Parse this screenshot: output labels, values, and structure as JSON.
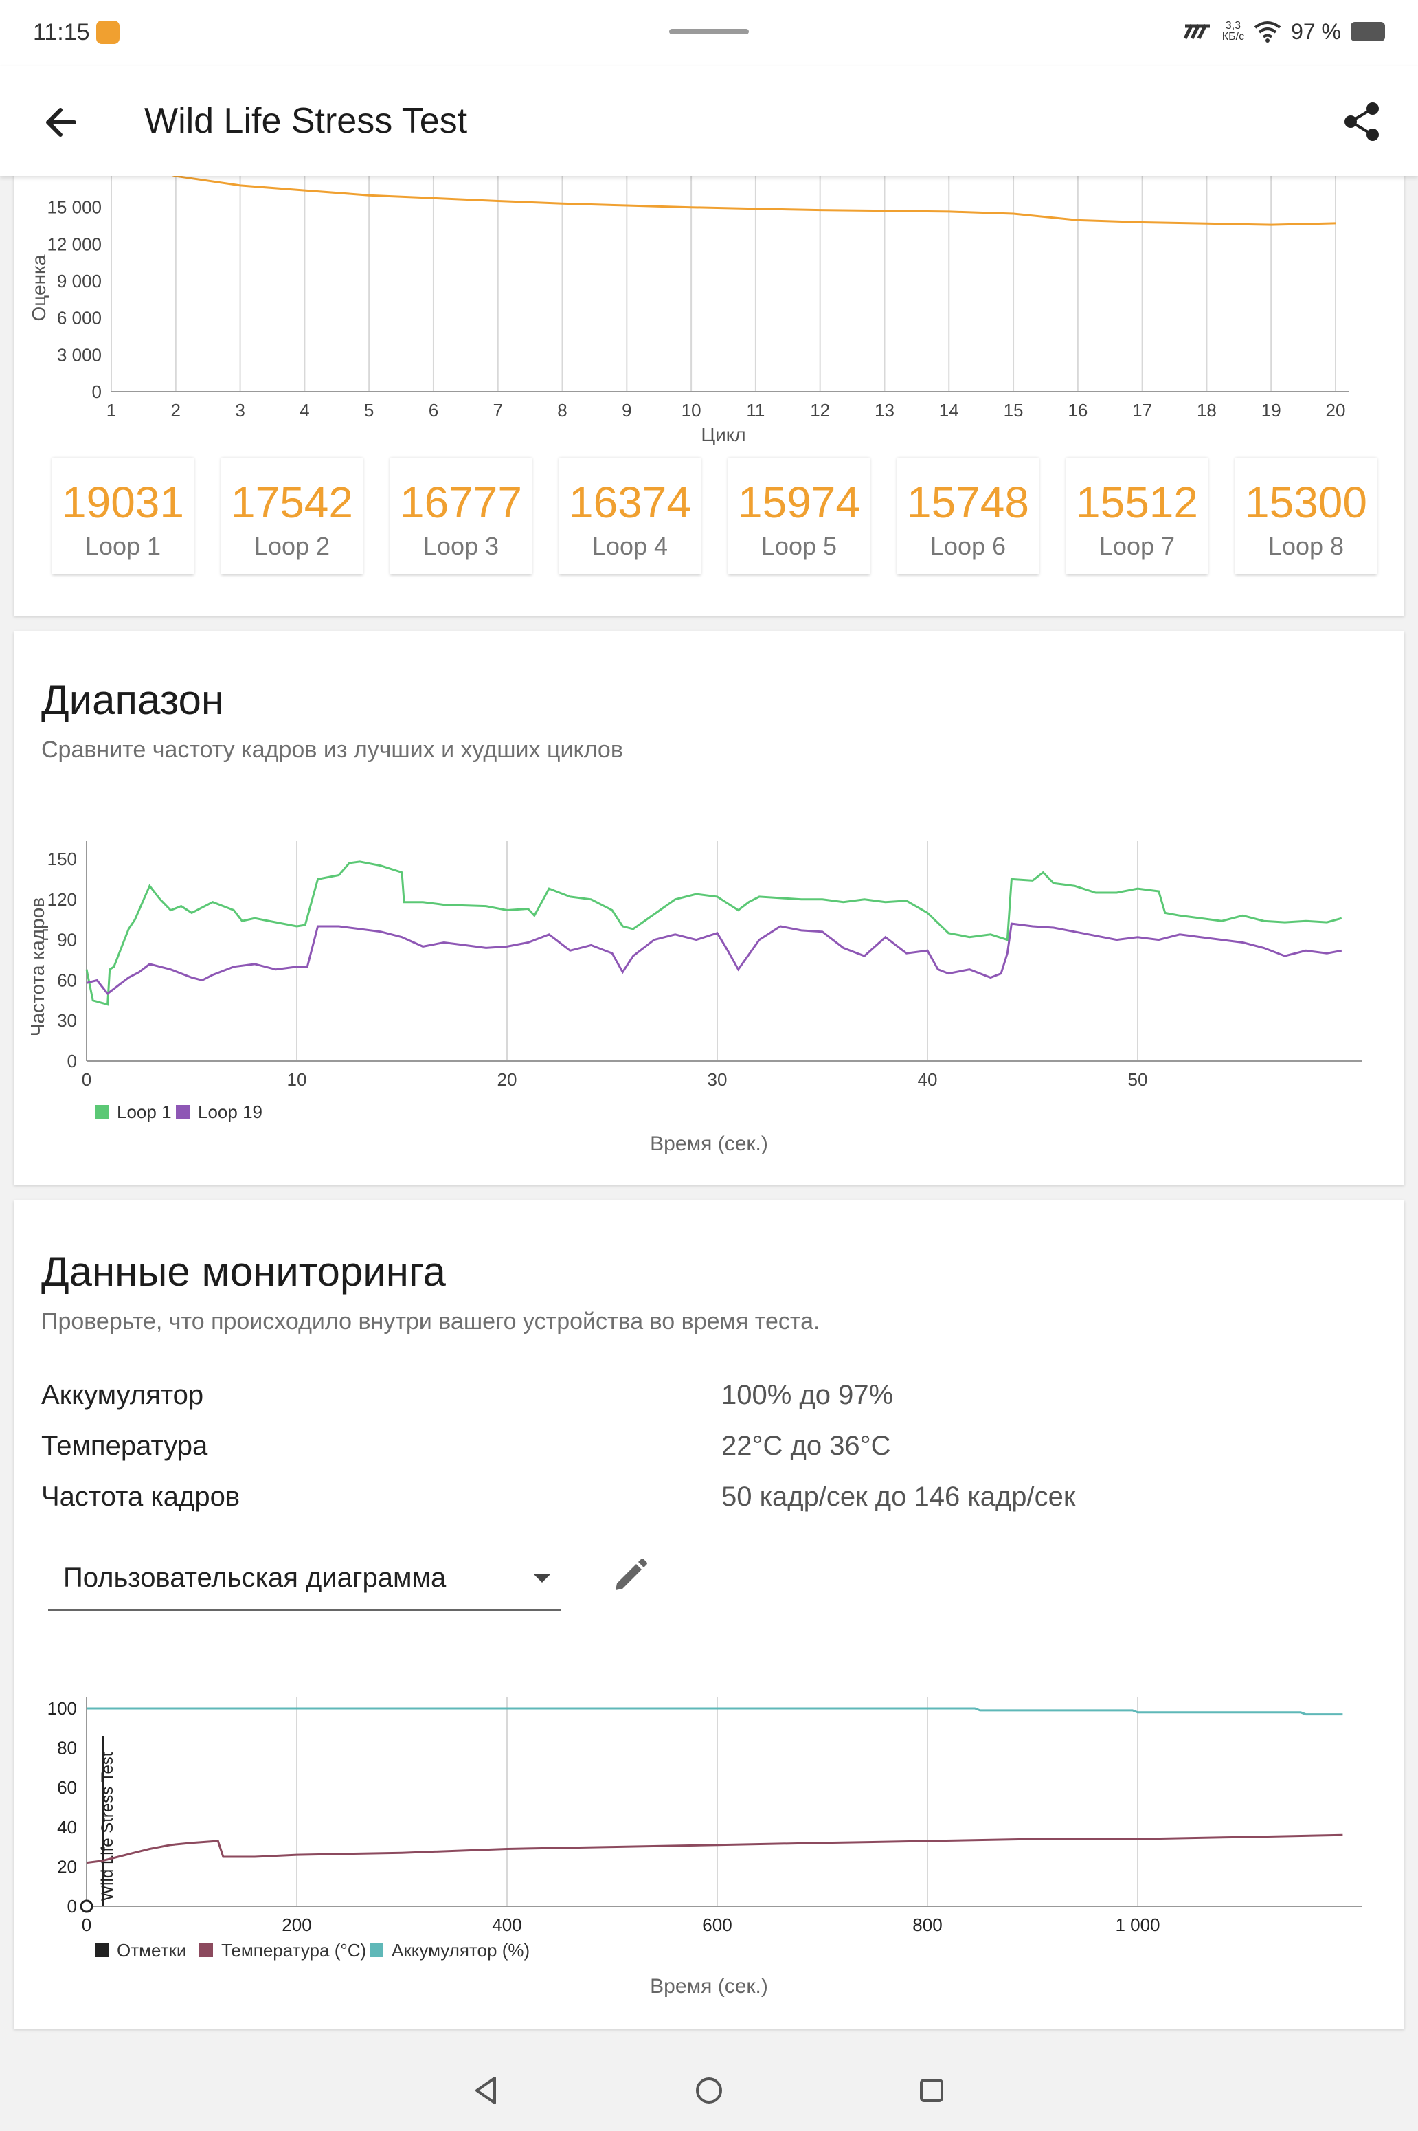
{
  "status": {
    "time": "11:15",
    "net_speed_value": "3,3",
    "net_speed_unit": "КБ/с",
    "battery": "97 %",
    "carrier_icon": "signal-icon",
    "wifi_icon": "wifi-icon"
  },
  "appbar": {
    "title": "Wild Life Stress Test",
    "back_icon": "arrow-back-icon",
    "share_icon": "share-icon"
  },
  "colors": {
    "accent_orange": "#f0a030",
    "loop1_green": "#5bc875",
    "loop19_purple": "#8e57b5",
    "temperature": "#8c4a5e",
    "battery": "#5fb8b8",
    "marks": "#222222"
  },
  "score_chart": {
    "ylabel": "Оценка",
    "xlabel": "Цикл",
    "y_ticks": [
      "0",
      "3 000",
      "6 000",
      "9 000",
      "12 000",
      "15 000"
    ],
    "x_ticks": [
      "1",
      "2",
      "3",
      "4",
      "5",
      "6",
      "7",
      "8",
      "9",
      "10",
      "11",
      "12",
      "13",
      "14",
      "15",
      "16",
      "17",
      "18",
      "19",
      "20"
    ]
  },
  "loops": [
    {
      "value": "19031",
      "label": "Loop 1"
    },
    {
      "value": "17542",
      "label": "Loop 2"
    },
    {
      "value": "16777",
      "label": "Loop 3"
    },
    {
      "value": "16374",
      "label": "Loop 4"
    },
    {
      "value": "15974",
      "label": "Loop 5"
    },
    {
      "value": "15748",
      "label": "Loop 6"
    },
    {
      "value": "15512",
      "label": "Loop 7"
    },
    {
      "value": "15300",
      "label": "Loop 8"
    }
  ],
  "range_section": {
    "title": "Диапазон",
    "subtitle": "Сравните частоту кадров из лучших и худших циклов",
    "ylabel": "Частота кадров",
    "xlabel": "Время (сек.)",
    "y_ticks": [
      "0",
      "30",
      "60",
      "90",
      "120",
      "150"
    ],
    "x_ticks": [
      "0",
      "10",
      "20",
      "30",
      "40",
      "50"
    ],
    "legend": [
      "Loop 1",
      "Loop 19"
    ]
  },
  "monitoring": {
    "title": "Данные мониторинга",
    "subtitle": "Проверьте, что происходило внутри вашего устройства во время теста.",
    "rows": [
      {
        "label": "Аккумулятор",
        "value": "100% до 97%"
      },
      {
        "label": "Температура",
        "value": "22°C до 36°C"
      },
      {
        "label": "Частота кадров",
        "value": "50 кадр/сек до 146 кадр/сек"
      }
    ],
    "dropdown_label": "Пользовательская диаграмма",
    "dropdown_icon": "caret-down-icon",
    "edit_icon": "pencil-icon",
    "chart_marker_label": "Wild Life Stress Test",
    "y_ticks": [
      "0",
      "20",
      "40",
      "60",
      "80",
      "100"
    ],
    "x_ticks": [
      "0",
      "200",
      "400",
      "600",
      "800",
      "1 000"
    ],
    "legend": [
      "Отметки",
      "Температура (°C)",
      "Аккумулятор (%)"
    ],
    "xlabel": "Время (сек.)"
  },
  "navbar": {
    "back_icon": "triangle-back-icon",
    "home_icon": "circle-home-icon",
    "recents_icon": "square-recents-icon"
  },
  "chart_data": [
    {
      "type": "line",
      "xlabel": "Цикл",
      "ylabel": "Оценка",
      "x": [
        1,
        2,
        3,
        4,
        5,
        6,
        7,
        8,
        9,
        10,
        11,
        12,
        13,
        14,
        15,
        16,
        17,
        18,
        19,
        20
      ],
      "series": [
        {
          "values": [
            19031,
            17542,
            16777,
            16374,
            15974,
            15748,
            15512,
            15300,
            15150,
            15000,
            14880,
            14780,
            14720,
            14650,
            14480,
            13950,
            13780,
            13680,
            13580,
            13700
          ]
        }
      ],
      "ylim": [
        0,
        18000
      ],
      "grid": true
    },
    {
      "type": "line",
      "xlabel": "Время (сек.)",
      "ylabel": "Частота кадров",
      "ylim": [
        0,
        150
      ],
      "xlim": [
        0,
        60
      ],
      "grid": "vertical",
      "legend_position": "bottom-left",
      "series": [
        {
          "name": "Loop 1",
          "x": [
            0,
            0.3,
            1,
            1.1,
            1.3,
            2,
            2.3,
            3,
            3.5,
            4,
            4.5,
            5,
            6,
            7,
            7.4,
            8,
            9,
            10,
            10.4,
            11,
            12,
            12.5,
            13,
            14,
            15,
            15.1,
            16,
            17,
            19,
            20,
            21,
            21.3,
            22,
            23,
            24,
            25,
            25.5,
            26,
            28,
            29,
            30,
            31,
            31.5,
            32,
            34,
            35,
            36,
            37,
            38,
            39,
            40,
            41,
            42,
            43,
            43.8,
            44,
            45,
            45.5,
            46,
            47,
            48,
            49,
            50,
            51,
            51.3,
            52,
            54,
            55,
            56,
            57,
            58,
            59,
            59.7
          ],
          "values": [
            68,
            45,
            42,
            68,
            70,
            98,
            105,
            130,
            120,
            112,
            115,
            110,
            118,
            112,
            104,
            106,
            103,
            100,
            101,
            135,
            138,
            147,
            148,
            145,
            140,
            118,
            118,
            116,
            115,
            112,
            113,
            108,
            128,
            122,
            120,
            112,
            100,
            98,
            120,
            124,
            122,
            112,
            118,
            122,
            120,
            120,
            118,
            120,
            118,
            119,
            110,
            95,
            92,
            94,
            90,
            135,
            134,
            140,
            132,
            130,
            125,
            125,
            128,
            126,
            110,
            108,
            104,
            108,
            104,
            103,
            104,
            103,
            106
          ]
        },
        {
          "name": "Loop 19",
          "x": [
            0,
            0.5,
            1,
            1.5,
            2,
            2.5,
            3,
            4,
            5,
            5.5,
            6,
            7,
            8,
            9,
            10,
            10.5,
            11,
            12,
            13,
            14,
            15,
            16,
            17,
            18,
            19,
            20,
            21,
            22,
            23,
            24,
            25,
            25.5,
            26,
            27,
            28,
            29,
            30,
            30.5,
            31,
            32,
            33,
            34,
            35,
            36,
            37,
            38,
            39,
            40,
            40.5,
            41,
            42,
            43,
            43.5,
            43.8,
            44,
            45,
            46,
            47,
            48,
            49,
            50,
            51,
            52,
            53,
            54,
            55,
            56,
            57,
            58,
            59,
            59.7
          ],
          "values": [
            58,
            60,
            50,
            56,
            62,
            66,
            72,
            68,
            62,
            60,
            64,
            70,
            72,
            68,
            70,
            70,
            100,
            100,
            98,
            96,
            92,
            85,
            88,
            86,
            84,
            85,
            88,
            94,
            82,
            86,
            80,
            66,
            78,
            90,
            94,
            90,
            95,
            82,
            68,
            90,
            100,
            97,
            96,
            84,
            78,
            92,
            80,
            82,
            68,
            65,
            68,
            62,
            65,
            80,
            102,
            100,
            99,
            96,
            93,
            90,
            92,
            90,
            94,
            92,
            90,
            88,
            84,
            78,
            82,
            80,
            82
          ]
        }
      ]
    },
    {
      "type": "line",
      "xlabel": "Время (сек.)",
      "ylim": [
        0,
        100
      ],
      "xlim": [
        0,
        1200
      ],
      "grid": "vertical",
      "legend_position": "bottom-left",
      "series": [
        {
          "name": "Температура (°C)",
          "x": [
            0,
            15,
            30,
            45,
            60,
            80,
            100,
            125,
            130,
            160,
            200,
            300,
            400,
            500,
            600,
            700,
            800,
            900,
            1000,
            1100,
            1195
          ],
          "values": [
            22,
            23,
            25,
            27,
            29,
            31,
            32,
            33,
            25,
            25,
            26,
            27,
            29,
            30,
            31,
            32,
            33,
            34,
            34,
            35,
            36
          ]
        },
        {
          "name": "Аккумулятор (%)",
          "x": [
            0,
            845,
            850,
            995,
            1000,
            1155,
            1160,
            1195
          ],
          "values": [
            100,
            100,
            99,
            99,
            98,
            98,
            97,
            97
          ]
        }
      ]
    }
  ]
}
